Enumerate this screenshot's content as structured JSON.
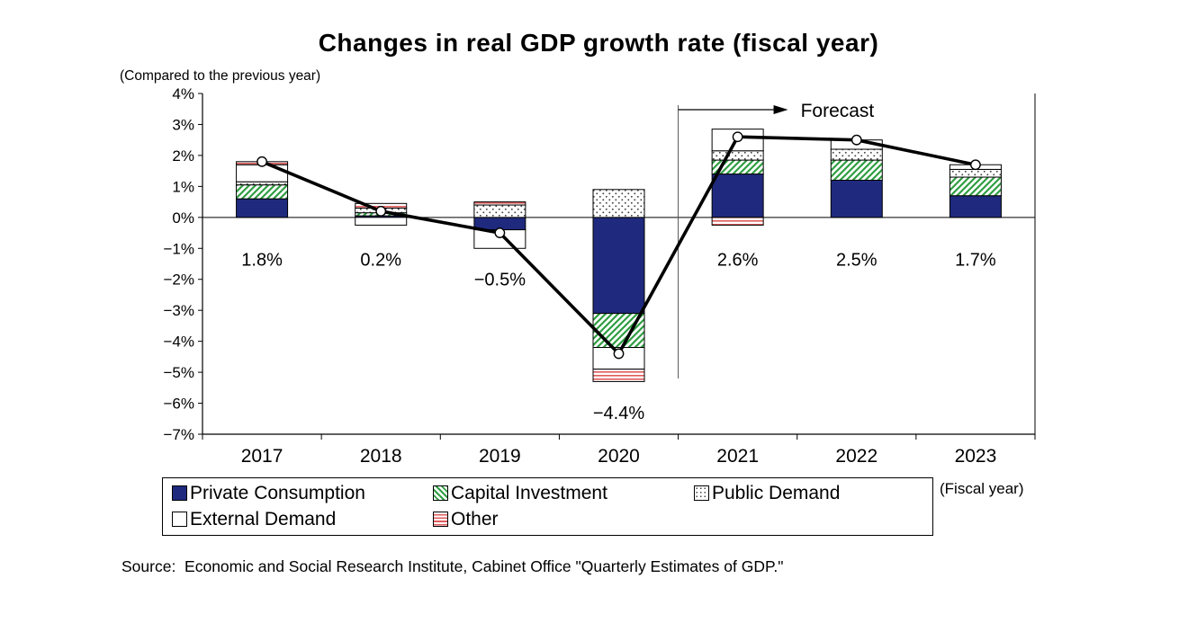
{
  "title": "Changes in real GDP growth rate (fiscal year)",
  "note": "(Compared to the previous year)",
  "forecast_label": "Forecast",
  "fiscal_year_label": "(Fiscal year)",
  "source": "Source:  Economic and Social Research Institute, Cabinet Office \"Quarterly Estimates of GDP.\"",
  "colors": {
    "private_consumption": "#1f2a7e",
    "capital_investment": "#2f9e41",
    "public_demand_dots": "#444444",
    "external_demand": "#ffffff",
    "other": "#e05b5b",
    "line": "#000000"
  },
  "chart_data": {
    "type": "bar",
    "stacked": true,
    "title": "Changes in real GDP growth rate (fiscal year)",
    "xlabel": "(Fiscal year)",
    "ylabel": "(Compared to the previous year)",
    "ylim": [
      -7,
      4
    ],
    "ytick_step": 1,
    "y_axis_format": "percent",
    "legend_position": "bottom",
    "categories": [
      "2017",
      "2018",
      "2019",
      "2020",
      "2021",
      "2022",
      "2023"
    ],
    "series": [
      {
        "name": "Private Consumption",
        "style": "navy",
        "values": [
          0.6,
          0.05,
          -0.4,
          -3.1,
          1.4,
          1.2,
          0.7
        ]
      },
      {
        "name": "Capital Investment",
        "style": "green-hatch",
        "values": [
          0.45,
          0.1,
          0.0,
          -1.1,
          0.45,
          0.65,
          0.6
        ]
      },
      {
        "name": "Public Demand",
        "style": "dots",
        "values": [
          0.1,
          0.15,
          0.4,
          0.9,
          0.3,
          0.35,
          0.25
        ]
      },
      {
        "name": "External Demand",
        "style": "white",
        "values": [
          0.55,
          -0.25,
          -0.6,
          -0.7,
          0.7,
          0.3,
          0.15
        ]
      },
      {
        "name": "Other",
        "style": "red-stripes",
        "values": [
          0.1,
          0.15,
          0.1,
          -0.4,
          -0.25,
          0.0,
          0.0
        ]
      }
    ],
    "line": {
      "values": [
        1.8,
        0.2,
        -0.5,
        -4.4,
        2.6,
        2.5,
        1.7
      ]
    },
    "data_labels": [
      "1.8%",
      "0.2%",
      "−0.5%",
      "−4.4%",
      "2.6%",
      "2.5%",
      "1.7%"
    ],
    "forecast_divider_after": "2020"
  }
}
